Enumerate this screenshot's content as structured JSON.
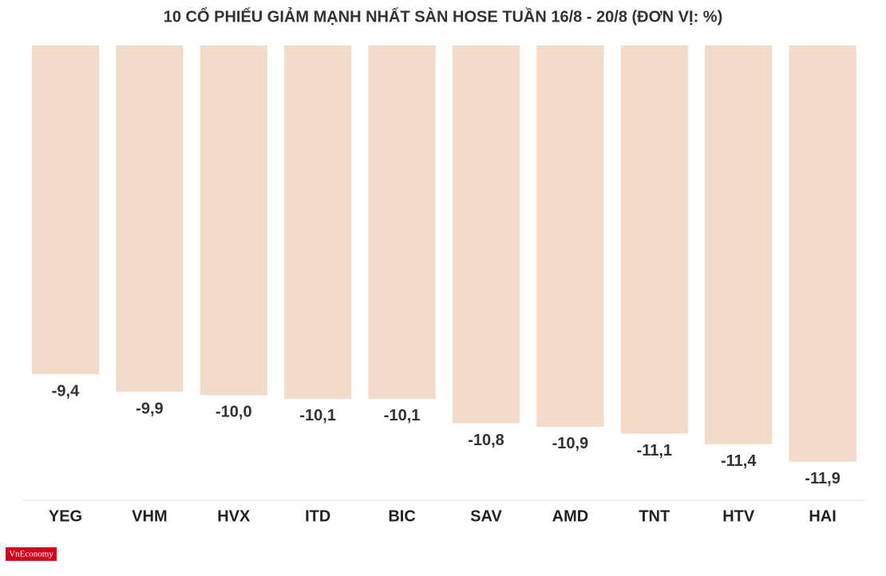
{
  "chart_data": {
    "type": "bar",
    "title": "10 CỔ PHIẾU GIẢM MẠNH NHẤT SÀN HOSE TUẦN 16/8 - 20/8 (ĐƠN VỊ: %)",
    "categories": [
      "YEG",
      "VHM",
      "HVX",
      "ITD",
      "BIC",
      "SAV",
      "AMD",
      "TNT",
      "HTV",
      "HAI"
    ],
    "values": [
      -9.4,
      -9.9,
      -10.0,
      -10.1,
      -10.1,
      -10.8,
      -10.9,
      -11.1,
      -11.4,
      -11.9
    ],
    "value_labels": [
      "-9,4",
      "-9,9",
      "-10,0",
      "-10,1",
      "-10,1",
      "-10,8",
      "-10,9",
      "-11,1",
      "-11,4",
      "-11,9"
    ],
    "color": "#f2dcc9",
    "ylim": [
      -13,
      0
    ],
    "source_logo": "VnEconomy"
  }
}
